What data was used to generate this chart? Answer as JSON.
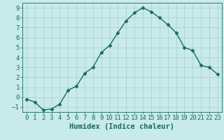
{
  "x": [
    0,
    1,
    2,
    3,
    4,
    5,
    6,
    7,
    8,
    9,
    10,
    11,
    12,
    13,
    14,
    15,
    16,
    17,
    18,
    19,
    20,
    21,
    22,
    23
  ],
  "y": [
    -0.2,
    -0.5,
    -1.3,
    -1.2,
    -0.7,
    0.7,
    1.1,
    2.4,
    3.0,
    4.5,
    5.2,
    6.5,
    7.7,
    8.5,
    9.0,
    8.6,
    8.0,
    7.3,
    6.5,
    5.0,
    4.7,
    3.2,
    3.0,
    2.3
  ],
  "line_color": "#1a6b5a",
  "marker": "D",
  "marker_size": 2.5,
  "bg_color": "#c8eaea",
  "grid_color": "#a8cccc",
  "xlabel": "Humidex (Indice chaleur)",
  "xlim": [
    -0.5,
    23.5
  ],
  "ylim": [
    -1.5,
    9.5
  ],
  "xticks": [
    0,
    1,
    2,
    3,
    4,
    5,
    6,
    7,
    8,
    9,
    10,
    11,
    12,
    13,
    14,
    15,
    16,
    17,
    18,
    19,
    20,
    21,
    22,
    23
  ],
  "yticks": [
    -1,
    0,
    1,
    2,
    3,
    4,
    5,
    6,
    7,
    8,
    9
  ],
  "tick_label_color": "#1a6b5a",
  "xlabel_color": "#1a6b5a",
  "xlabel_fontsize": 7.5,
  "tick_fontsize": 6.5
}
